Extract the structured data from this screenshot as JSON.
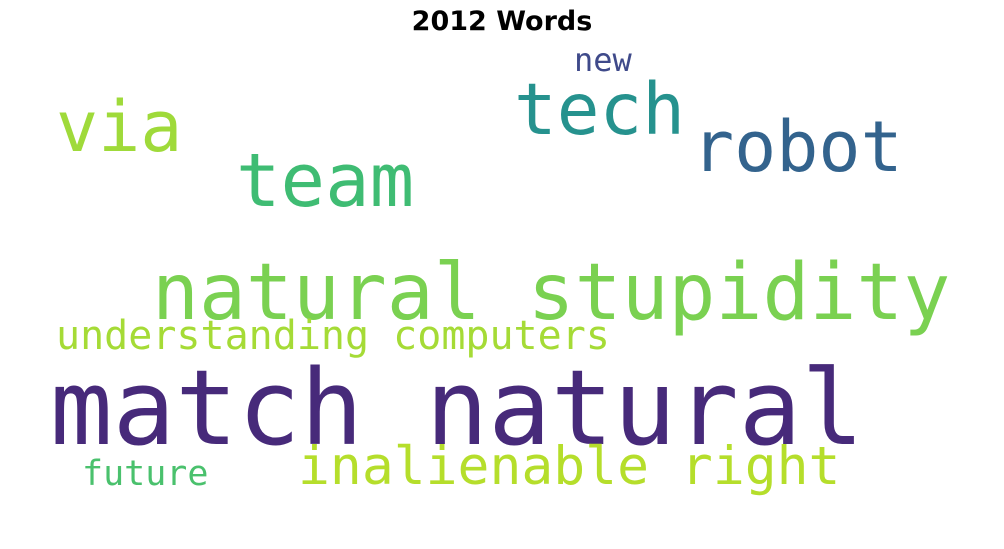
{
  "title": "2012 Words",
  "words": [
    {
      "id": "new",
      "text": "new",
      "color": "#3f4a8a"
    },
    {
      "id": "tech",
      "text": "tech",
      "color": "#26928e"
    },
    {
      "id": "via",
      "text": "via",
      "color": "#9fda3a"
    },
    {
      "id": "robot",
      "text": "robot",
      "color": "#33638d"
    },
    {
      "id": "team",
      "text": "team",
      "color": "#3fbc73"
    },
    {
      "id": "natural_stupidity",
      "text": "natural stupidity",
      "color": "#7ad151"
    },
    {
      "id": "understanding_computers",
      "text": "understanding computers",
      "color": "#a5db36"
    },
    {
      "id": "match_natural",
      "text": "match natural",
      "color": "#472a7a"
    },
    {
      "id": "inalienable_right",
      "text": "inalienable right",
      "color": "#b5de2b"
    },
    {
      "id": "future",
      "text": "future",
      "color": "#4ac16d"
    }
  ]
}
